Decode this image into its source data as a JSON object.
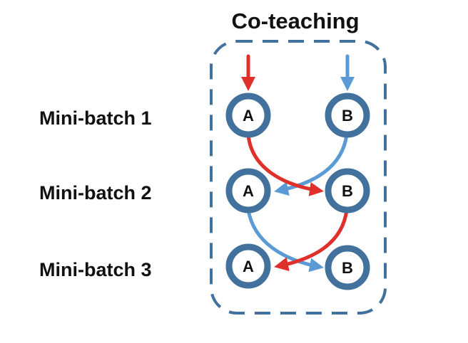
{
  "title": "Co-teaching",
  "rows": [
    {
      "label": "Mini-batch 1",
      "nodes": [
        "A",
        "B"
      ]
    },
    {
      "label": "Mini-batch 2",
      "nodes": [
        "A",
        "B"
      ]
    },
    {
      "label": "Mini-batch 3",
      "nodes": [
        "A",
        "B"
      ]
    }
  ],
  "colors": {
    "frame": "#41719c",
    "node_ring": "#41719c",
    "flow_red": "#e0302b",
    "flow_blue": "#5b9bd5"
  }
}
